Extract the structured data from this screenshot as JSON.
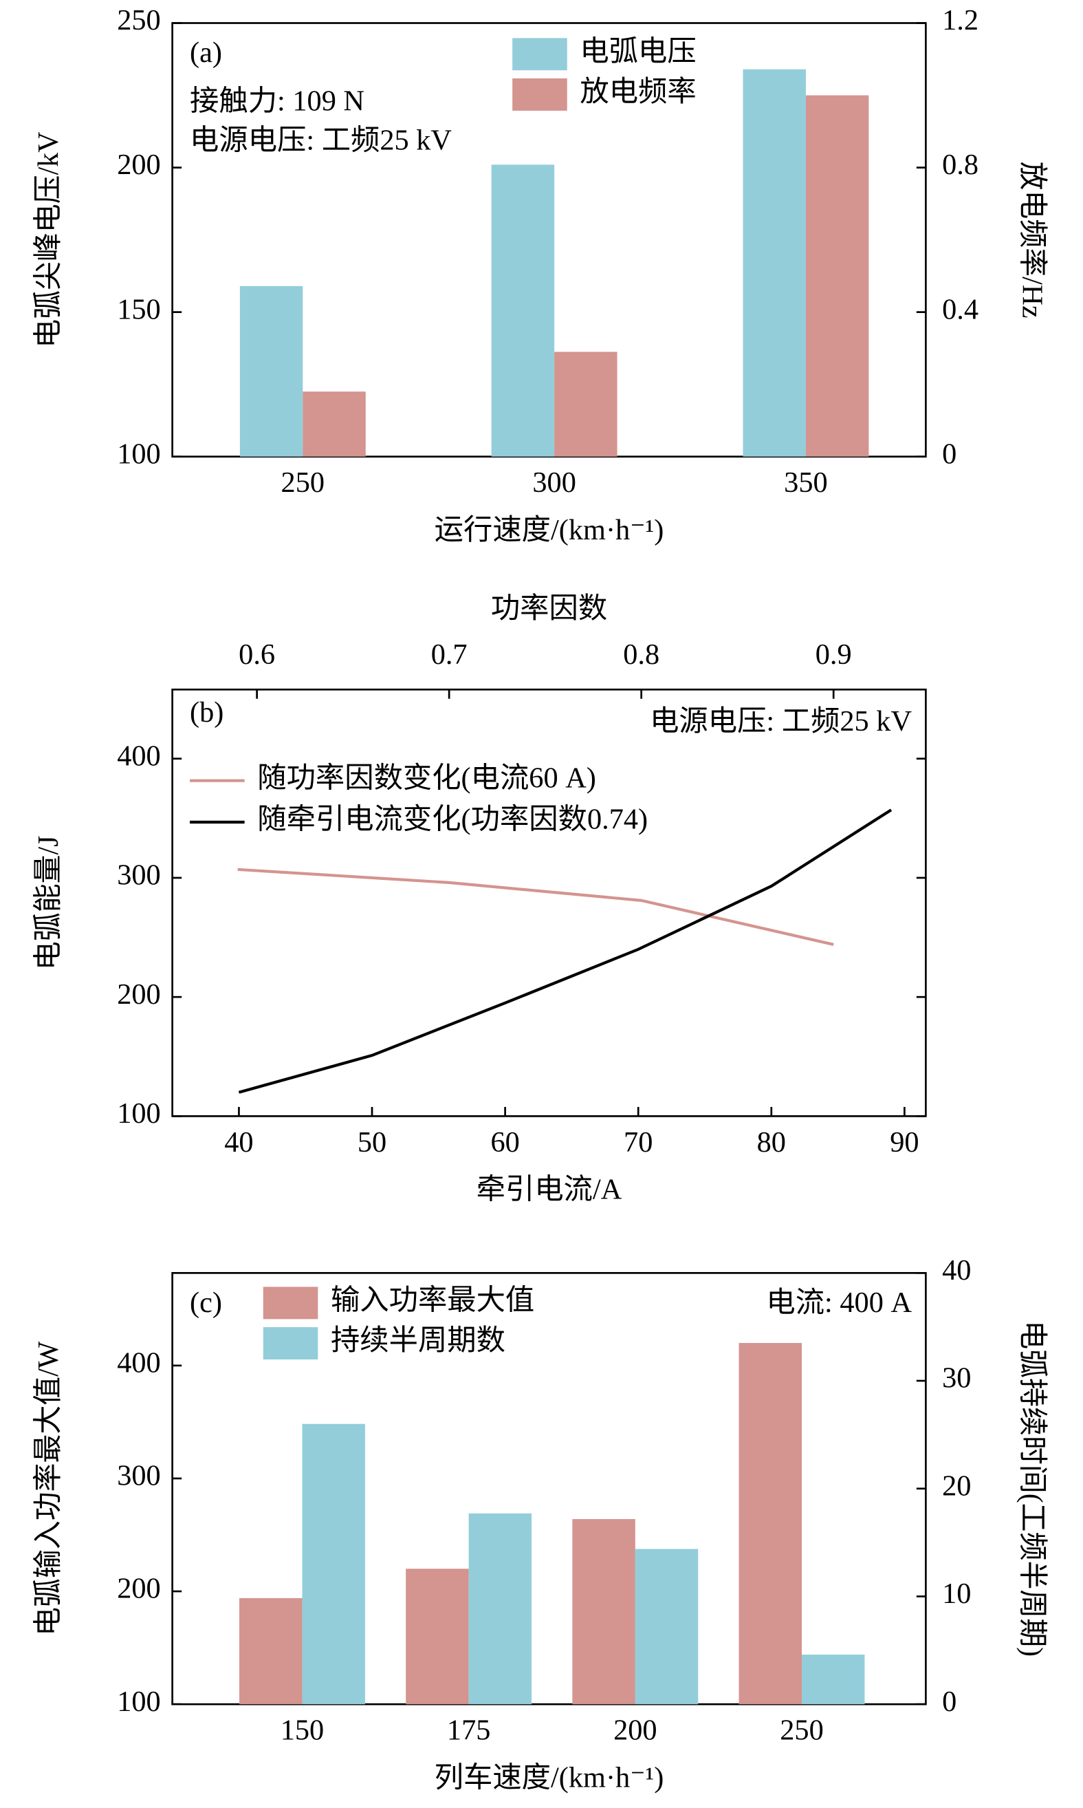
{
  "chart_data": [
    {
      "type": "bar",
      "annotations": [
        "(a)",
        "接触力: 109 N",
        "电源电压: 工频25 kV"
      ],
      "x_label": "运行速度/(km·h⁻¹)",
      "y_label": "电弧尖峰电压/kV",
      "y2_label": "放电频率/Hz",
      "categories": [
        "250",
        "300",
        "350"
      ],
      "series": [
        {
          "name": "电弧电压",
          "color": "#93cdda",
          "values": [
            159,
            201,
            234
          ]
        },
        {
          "name": "放电频率",
          "color": "#d4948f",
          "axis": "y2",
          "values": [
            0.18,
            0.29,
            1.0
          ]
        }
      ],
      "ylim": [
        100,
        250
      ],
      "yticks": [
        100,
        150,
        200,
        250
      ],
      "y2lim": [
        0,
        1.2
      ],
      "y2ticks": [
        0,
        0.4,
        0.8,
        1.2
      ]
    },
    {
      "type": "line",
      "annotations": [
        "(b)",
        "电源电压: 工频25 kV"
      ],
      "x_label": "牵引电流/A",
      "x2_label": "功率因数",
      "y_label": "电弧能量/J",
      "series": [
        {
          "name": "随功率因数变化(电流60 A)",
          "color": "#d4948f",
          "axis": "x2",
          "x": [
            0.59,
            0.7,
            0.8,
            0.9
          ],
          "values": [
            307,
            296,
            281,
            244
          ]
        },
        {
          "name": "随牵引电流变化(功率因数0.74)",
          "color": "#000000",
          "x": [
            40,
            50,
            60,
            70,
            80,
            89
          ],
          "values": [
            120,
            151,
            195,
            240,
            293,
            357
          ]
        }
      ],
      "xlim": [
        35,
        91.6
      ],
      "xticks": [
        40,
        50,
        60,
        70,
        80,
        90
      ],
      "x2lim": [
        0.556,
        0.948
      ],
      "x2ticks": [
        0.6,
        0.7,
        0.8,
        0.9
      ],
      "ylim": [
        100,
        458
      ],
      "yticks": [
        100,
        200,
        300,
        400
      ]
    },
    {
      "type": "bar",
      "annotations": [
        "(c)",
        "电流: 400 A"
      ],
      "x_label": "列车速度/(km·h⁻¹)",
      "y_label": "电弧输入功率最大值/W",
      "y2_label": "电弧持续时间(工频半周期)",
      "categories": [
        "150",
        "175",
        "200",
        "250"
      ],
      "series": [
        {
          "name": "输入功率最大值",
          "color": "#d4948f",
          "values": [
            194,
            220,
            264,
            420
          ]
        },
        {
          "name": "持续半周期数",
          "color": "#93cdda",
          "axis": "y2",
          "values": [
            26,
            17.7,
            14.4,
            4.6
          ]
        }
      ],
      "ylim": [
        100,
        482
      ],
      "yticks": [
        100,
        200,
        300,
        400
      ],
      "y2lim": [
        0,
        40
      ],
      "y2ticks": [
        0,
        10,
        20,
        30,
        40
      ]
    }
  ]
}
